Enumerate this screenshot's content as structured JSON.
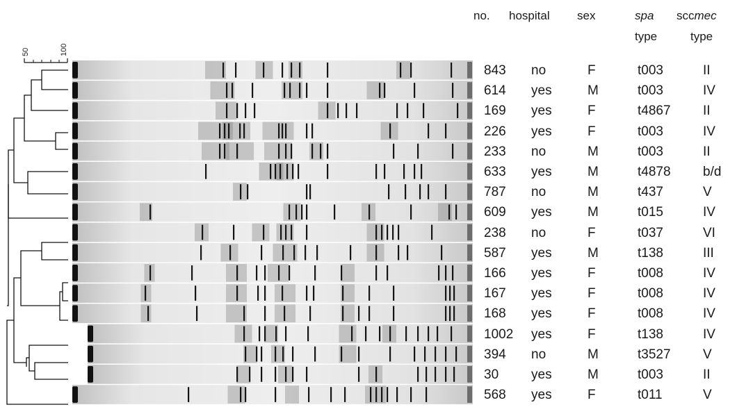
{
  "headers": {
    "no": "no.",
    "hospital": "hospital",
    "sex": "sex",
    "spa_line1": "spa",
    "spa_line2": "type",
    "scc_prefix": "scc",
    "scc_italic": "mec",
    "scc_line2": "type"
  },
  "scale": {
    "min_label": "50",
    "max_label": "100"
  },
  "isolates": [
    {
      "no": "843",
      "hospital": "no",
      "sex": "F",
      "spa": "t003",
      "sccmec": "II"
    },
    {
      "no": "614",
      "hospital": "yes",
      "sex": "M",
      "spa": "t003",
      "sccmec": "IV"
    },
    {
      "no": "169",
      "hospital": "yes",
      "sex": "F",
      "spa": "t4867",
      "sccmec": "II"
    },
    {
      "no": "226",
      "hospital": "yes",
      "sex": "F",
      "spa": "t003",
      "sccmec": "IV"
    },
    {
      "no": "233",
      "hospital": "no",
      "sex": "M",
      "spa": "t003",
      "sccmec": "II"
    },
    {
      "no": "633",
      "hospital": "yes",
      "sex": "M",
      "spa": "t4878",
      "sccmec": "b/d"
    },
    {
      "no": "787",
      "hospital": "no",
      "sex": "M",
      "spa": "t437",
      "sccmec": "V"
    },
    {
      "no": "609",
      "hospital": "yes",
      "sex": "M",
      "spa": "t015",
      "sccmec": "IV"
    },
    {
      "no": "238",
      "hospital": "no",
      "sex": "F",
      "spa": "t037",
      "sccmec": "VI"
    },
    {
      "no": "587",
      "hospital": "yes",
      "sex": "M",
      "spa": "t138",
      "sccmec": "III"
    },
    {
      "no": "166",
      "hospital": "yes",
      "sex": "F",
      "spa": "t008",
      "sccmec": "IV"
    },
    {
      "no": "167",
      "hospital": "yes",
      "sex": "F",
      "spa": "t008",
      "sccmec": "IV"
    },
    {
      "no": "168",
      "hospital": "yes",
      "sex": "F",
      "spa": "t008",
      "sccmec": "IV"
    },
    {
      "no": "1002",
      "hospital": "yes",
      "sex": "F",
      "spa": "t138",
      "sccmec": "IV"
    },
    {
      "no": "394",
      "hospital": "no",
      "sex": "M",
      "spa": "t3527",
      "sccmec": "V"
    },
    {
      "no": "30",
      "hospital": "yes",
      "sex": "M",
      "spa": "t003",
      "sccmec": "II"
    },
    {
      "no": "568",
      "hospital": "yes",
      "sex": "F",
      "spa": "t011",
      "sccmec": "V"
    }
  ]
}
